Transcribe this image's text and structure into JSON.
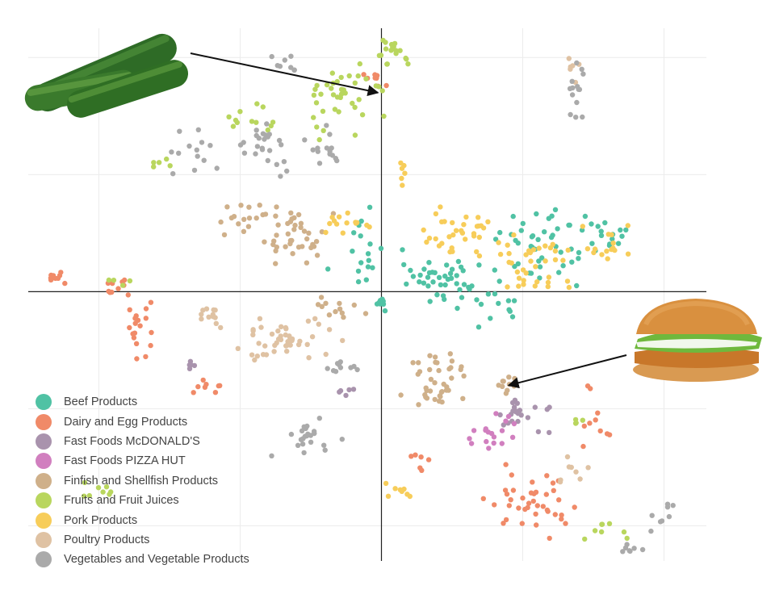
{
  "chart_data": {
    "type": "scatter",
    "title": "",
    "xlabel": "",
    "ylabel": "",
    "xlim": [
      -5,
      4.6
    ],
    "ylim": [
      -4.6,
      4.5
    ],
    "grid": true,
    "legend_position": "bottom-left",
    "annotations": [
      {
        "label": "cucumber-image",
        "points_to": {
          "x": -0.05,
          "y": 3.4
        }
      },
      {
        "label": "burger-image",
        "points_to": {
          "x": 1.8,
          "y": -1.6
        }
      }
    ],
    "series": [
      {
        "name": "Beef Products",
        "color": "#50c2a4",
        "clusters": [
          {
            "c": [
              0.8,
              0.2
            ],
            "s": [
              0.7,
              0.45
            ],
            "n": 45
          },
          {
            "c": [
              2.3,
              0.8
            ],
            "s": [
              0.7,
              0.55
            ],
            "n": 45
          },
          {
            "c": [
              3.3,
              1.0
            ],
            "s": [
              0.3,
              0.35
            ],
            "n": 14
          },
          {
            "c": [
              -0.3,
              0.7
            ],
            "s": [
              0.35,
              0.6
            ],
            "n": 16
          },
          {
            "c": [
              0.0,
              -0.2
            ],
            "s": [
              0.1,
              0.15
            ],
            "n": 8
          },
          {
            "c": [
              1.6,
              -0.2
            ],
            "s": [
              0.4,
              0.35
            ],
            "n": 12
          }
        ]
      },
      {
        "name": "Dairy and Egg Products",
        "color": "#f08a68",
        "clusters": [
          {
            "c": [
              -4.6,
              0.25
            ],
            "s": [
              0.15,
              0.1
            ],
            "n": 10
          },
          {
            "c": [
              -3.6,
              0.05
            ],
            "s": [
              0.3,
              0.15
            ],
            "n": 10
          },
          {
            "c": [
              -3.4,
              -0.8
            ],
            "s": [
              0.25,
              0.5
            ],
            "n": 18
          },
          {
            "c": [
              -2.5,
              -1.6
            ],
            "s": [
              0.2,
              0.15
            ],
            "n": 8
          },
          {
            "c": [
              2.2,
              -3.6
            ],
            "s": [
              0.6,
              0.5
            ],
            "n": 40
          },
          {
            "c": [
              3.0,
              -2.3
            ],
            "s": [
              0.3,
              0.6
            ],
            "n": 10
          },
          {
            "c": [
              -0.1,
              3.7
            ],
            "s": [
              0.2,
              0.25
            ],
            "n": 8
          },
          {
            "c": [
              0.5,
              -2.9
            ],
            "s": [
              0.3,
              0.2
            ],
            "n": 6
          }
        ]
      },
      {
        "name": "Fast Foods McDONALD'S",
        "color": "#a993ad",
        "clusters": [
          {
            "c": [
              2.0,
              -2.1
            ],
            "s": [
              0.35,
              0.3
            ],
            "n": 22
          },
          {
            "c": [
              -2.7,
              -1.3
            ],
            "s": [
              0.1,
              0.1
            ],
            "n": 5
          },
          {
            "c": [
              -0.5,
              -1.7
            ],
            "s": [
              0.2,
              0.1
            ],
            "n": 5
          }
        ]
      },
      {
        "name": "Fast Foods PIZZA HUT",
        "color": "#d17fbf",
        "clusters": [
          {
            "c": [
              1.5,
              -2.4
            ],
            "s": [
              0.4,
              0.3
            ],
            "n": 18
          }
        ]
      },
      {
        "name": "Finfish and Shellfish Products",
        "color": "#cfb08a",
        "clusters": [
          {
            "c": [
              -1.3,
              0.9
            ],
            "s": [
              0.5,
              0.55
            ],
            "n": 40
          },
          {
            "c": [
              -2.0,
              1.2
            ],
            "s": [
              0.35,
              0.35
            ],
            "n": 15
          },
          {
            "c": [
              -0.6,
              -0.3
            ],
            "s": [
              0.3,
              0.3
            ],
            "n": 12
          },
          {
            "c": [
              0.8,
              -1.5
            ],
            "s": [
              0.45,
              0.45
            ],
            "n": 40
          },
          {
            "c": [
              1.8,
              -1.6
            ],
            "s": [
              0.2,
              0.2
            ],
            "n": 12
          }
        ]
      },
      {
        "name": "Fruits and Fruit Juices",
        "color": "#b9d65e",
        "clusters": [
          {
            "c": [
              -0.6,
              3.3
            ],
            "s": [
              0.55,
              0.6
            ],
            "n": 40
          },
          {
            "c": [
              0.2,
              4.1
            ],
            "s": [
              0.3,
              0.25
            ],
            "n": 18
          },
          {
            "c": [
              -1.8,
              3.0
            ],
            "s": [
              0.3,
              0.3
            ],
            "n": 12
          },
          {
            "c": [
              -3.1,
              2.2
            ],
            "s": [
              0.1,
              0.1
            ],
            "n": 5
          },
          {
            "c": [
              -4.1,
              -3.4
            ],
            "s": [
              0.25,
              0.2
            ],
            "n": 8
          },
          {
            "c": [
              3.2,
              -4.1
            ],
            "s": [
              0.4,
              0.2
            ],
            "n": 8
          },
          {
            "c": [
              2.8,
              -2.2
            ],
            "s": [
              0.1,
              0.1
            ],
            "n": 4
          },
          {
            "c": [
              -3.7,
              0.2
            ],
            "s": [
              0.2,
              0.1
            ],
            "n": 4
          }
        ]
      },
      {
        "name": "Pork Products",
        "color": "#f7cd5a",
        "clusters": [
          {
            "c": [
              1.2,
              1.0
            ],
            "s": [
              0.6,
              0.5
            ],
            "n": 35
          },
          {
            "c": [
              2.2,
              0.4
            ],
            "s": [
              0.6,
              0.55
            ],
            "n": 35
          },
          {
            "c": [
              3.2,
              0.8
            ],
            "s": [
              0.35,
              0.4
            ],
            "n": 15
          },
          {
            "c": [
              -0.5,
              1.1
            ],
            "s": [
              0.35,
              0.25
            ],
            "n": 14
          },
          {
            "c": [
              0.3,
              -3.4
            ],
            "s": [
              0.35,
              0.15
            ],
            "n": 8
          },
          {
            "c": [
              0.3,
              2.0
            ],
            "s": [
              0.15,
              0.25
            ],
            "n": 6
          }
        ]
      },
      {
        "name": "Poultry Products",
        "color": "#dfc2a3",
        "clusters": [
          {
            "c": [
              -1.4,
              -0.8
            ],
            "s": [
              0.65,
              0.4
            ],
            "n": 45
          },
          {
            "c": [
              -2.4,
              -0.4
            ],
            "s": [
              0.25,
              0.25
            ],
            "n": 12
          },
          {
            "c": [
              2.8,
              -3.0
            ],
            "s": [
              0.3,
              0.25
            ],
            "n": 8
          },
          {
            "c": [
              2.7,
              3.8
            ],
            "s": [
              0.1,
              0.3
            ],
            "n": 6
          }
        ]
      },
      {
        "name": "Vegetables and Vegetable Products",
        "color": "#aaaaaa",
        "clusters": [
          {
            "c": [
              -1.8,
              2.5
            ],
            "s": [
              0.6,
              0.4
            ],
            "n": 25
          },
          {
            "c": [
              -0.8,
              2.4
            ],
            "s": [
              0.3,
              0.3
            ],
            "n": 14
          },
          {
            "c": [
              -2.6,
              2.4
            ],
            "s": [
              0.4,
              0.3
            ],
            "n": 12
          },
          {
            "c": [
              -1.3,
              3.9
            ],
            "s": [
              0.35,
              0.2
            ],
            "n": 8
          },
          {
            "c": [
              -0.6,
              -1.3
            ],
            "s": [
              0.25,
              0.15
            ],
            "n": 10
          },
          {
            "c": [
              -1.0,
              -2.5
            ],
            "s": [
              0.5,
              0.4
            ],
            "n": 22
          },
          {
            "c": [
              3.5,
              -4.4
            ],
            "s": [
              0.2,
              0.1
            ],
            "n": 7
          },
          {
            "c": [
              4.0,
              -3.9
            ],
            "s": [
              0.2,
              0.3
            ],
            "n": 8
          },
          {
            "c": [
              2.8,
              3.5
            ],
            "s": [
              0.12,
              0.5
            ],
            "n": 14
          }
        ]
      }
    ]
  }
}
